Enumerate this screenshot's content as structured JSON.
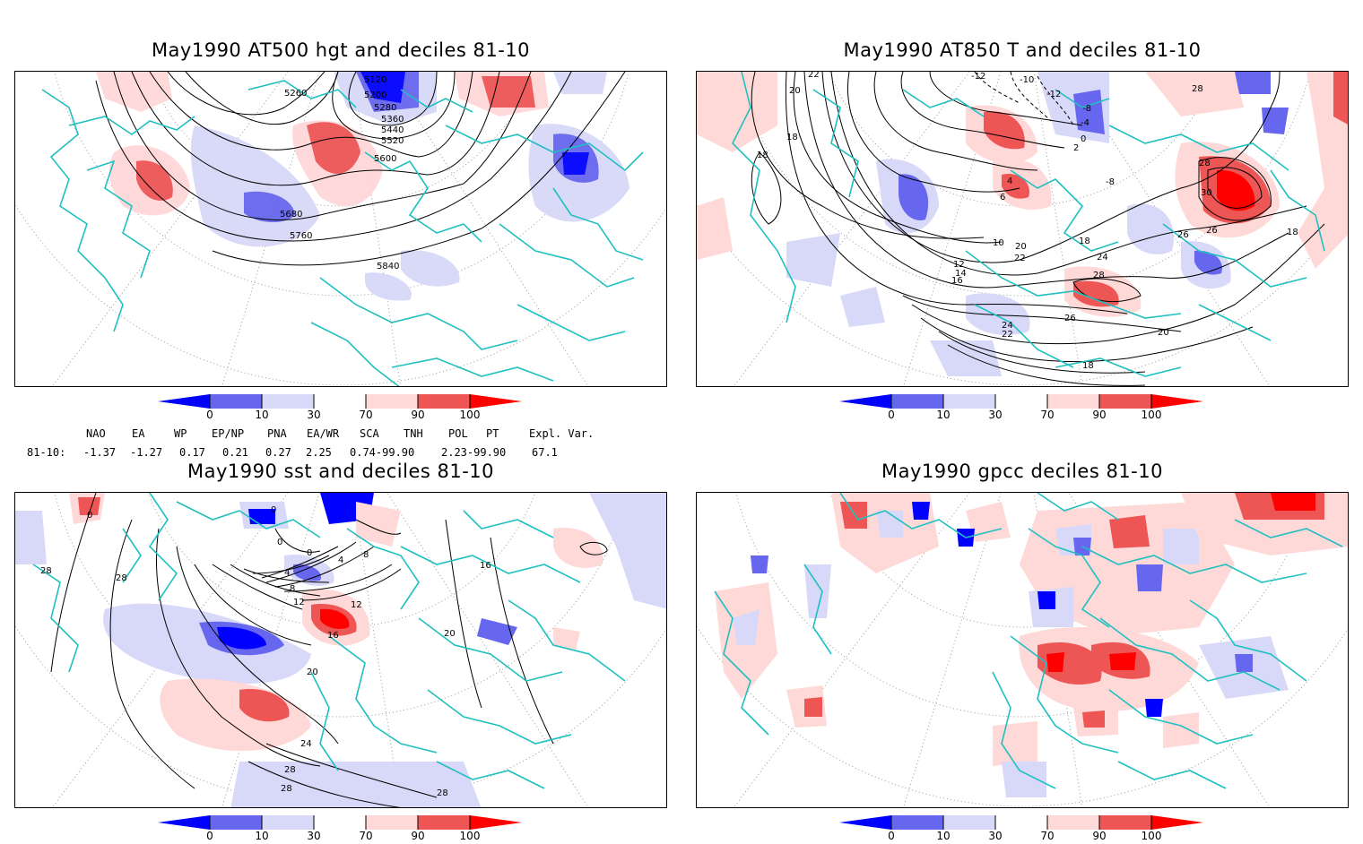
{
  "panels": [
    {
      "title": "May1990 AT500 hgt and deciles 81-10",
      "contour_labels": [
        "5120",
        "5200",
        "5260",
        "5280",
        "5360",
        "5440",
        "5520",
        "5600",
        "5680",
        "5760",
        "5840"
      ]
    },
    {
      "title": "May1990 AT850 T and deciles 81-10",
      "contour_labels": [
        "22",
        "20",
        "18",
        "18",
        "-12",
        "-10",
        "-12",
        "-8",
        "-4",
        "0",
        "2",
        "4",
        "6",
        "-8",
        "28",
        "28",
        "30",
        "26",
        "18",
        "10",
        "12",
        "14",
        "16",
        "20",
        "22",
        "18",
        "24",
        "26",
        "28",
        "26",
        "24",
        "22",
        "20",
        "18"
      ]
    },
    {
      "title": "May1990 sst and deciles 81-10",
      "contour_labels": [
        "0",
        "28",
        "28",
        "0",
        "0",
        "0",
        "4",
        "8",
        "12",
        "12",
        "8",
        "4",
        "16",
        "20",
        "24",
        "28",
        "28",
        "28",
        "16",
        "20"
      ]
    },
    {
      "title": "May1990 gpcc deciles 81-10",
      "contour_labels": []
    }
  ],
  "colorbar": {
    "labels": [
      "0",
      "10",
      "30",
      "70",
      "90",
      "100"
    ],
    "colors": [
      "#0000ff",
      "#6666ee",
      "#d8d8f8",
      "#ffffff",
      "#ffd8d8",
      "#ee5555",
      "#ff0000"
    ]
  },
  "indices": {
    "headers": [
      "NAO",
      "EA",
      "WP",
      "EP/NP",
      "PNA",
      "EA/WR",
      "SCA",
      "TNH",
      "POL",
      "PT",
      "Expl. Var."
    ],
    "row_label": "81-10:",
    "values": [
      "-1.37",
      "-1.27",
      "0.17",
      "0.21",
      "0.27",
      "2.25",
      "0.74-99.90",
      "2.23-99.90",
      "67.1"
    ]
  },
  "map_colors": {
    "coast": "#20c0c0",
    "contour": "#000000",
    "grid": "#999999"
  }
}
